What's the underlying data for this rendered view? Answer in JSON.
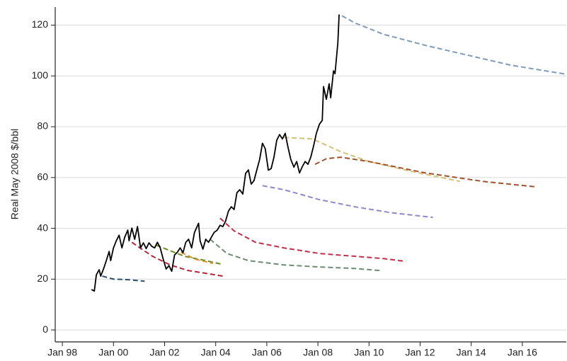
{
  "chart_data": {
    "type": "line",
    "ylabel": "Real May 2008 $/bbl",
    "xlim": [
      1997.72,
      2017.72
    ],
    "xticks": [
      {
        "value": 1998,
        "label": "Jan 98"
      },
      {
        "value": 2000,
        "label": "Jan 00"
      },
      {
        "value": 2002,
        "label": "Jan 02"
      },
      {
        "value": 2004,
        "label": "Jan 04"
      },
      {
        "value": 2006,
        "label": "Jan 06"
      },
      {
        "value": 2008,
        "label": "Jan 08"
      },
      {
        "value": 2010,
        "label": "Jan 10"
      },
      {
        "value": 2012,
        "label": "Jan 12"
      },
      {
        "value": 2014,
        "label": "Jan 14"
      },
      {
        "value": 2016,
        "label": "Jan 16"
      }
    ],
    "ylim": [
      -4.7,
      127.1
    ],
    "yticks": [
      0,
      20,
      40,
      60,
      80,
      100,
      120
    ],
    "grid": true,
    "series": [
      {
        "color": "#000000",
        "dashed": false,
        "x": [
          1999.14,
          1999.25,
          1999.33,
          1999.44,
          1999.5,
          1999.61,
          1999.72,
          1999.83,
          1999.89,
          2000.0,
          2000.11,
          2000.22,
          2000.33,
          2000.44,
          2000.56,
          2000.61,
          2000.72,
          2000.83,
          2000.94,
          2001.06,
          2001.17,
          2001.28,
          2001.39,
          2001.5,
          2001.61,
          2001.72,
          2001.83,
          2001.94,
          2002.06,
          2002.17,
          2002.28,
          2002.39,
          2002.5,
          2002.61,
          2002.72,
          2002.83,
          2002.94,
          2003.06,
          2003.17,
          2003.33,
          2003.39,
          2003.5,
          2003.61,
          2003.72,
          2003.83,
          2003.94,
          2004.06,
          2004.17,
          2004.28,
          2004.39,
          2004.5,
          2004.61,
          2004.72,
          2004.83,
          2004.94,
          2005.06,
          2005.17,
          2005.28,
          2005.39,
          2005.5,
          2005.61,
          2005.72,
          2005.83,
          2005.94,
          2006.06,
          2006.17,
          2006.28,
          2006.39,
          2006.5,
          2006.61,
          2006.72,
          2006.83,
          2006.94,
          2007.06,
          2007.17,
          2007.28,
          2007.39,
          2007.5,
          2007.61,
          2007.72,
          2007.83,
          2007.94,
          2008.06,
          2008.17,
          2008.22,
          2008.33,
          2008.44,
          2008.5,
          2008.61,
          2008.67,
          2008.78,
          2008.83
        ],
        "values": [
          15.9,
          15.3,
          21.7,
          23.7,
          21.2,
          24.0,
          27.3,
          30.9,
          27.3,
          32.3,
          35.1,
          37.3,
          32.3,
          36.5,
          39.3,
          35.1,
          40.1,
          35.7,
          40.7,
          32.3,
          34.3,
          32.0,
          34.3,
          32.9,
          32.3,
          34.5,
          32.3,
          28.1,
          24.0,
          25.3,
          23.1,
          29.5,
          30.6,
          32.3,
          30.4,
          34.5,
          35.7,
          32.3,
          38.4,
          42.0,
          35.1,
          31.8,
          35.7,
          34.5,
          36.5,
          38.4,
          39.3,
          41.2,
          40.7,
          42.9,
          46.8,
          48.5,
          47.4,
          54.0,
          55.2,
          53.5,
          61.6,
          63.0,
          57.4,
          58.8,
          63.0,
          67.1,
          73.5,
          71.3,
          62.9,
          63.5,
          68.0,
          74.7,
          76.9,
          75.2,
          77.4,
          71.9,
          67.1,
          64.1,
          66.3,
          61.8,
          64.3,
          66.3,
          65.2,
          68.0,
          72.4,
          77.4,
          81.0,
          82.5,
          95.8,
          90.8,
          96.9,
          91.4,
          102.0,
          100.9,
          113.0,
          124.2
        ]
      },
      {
        "color": "#2b4f6e",
        "dashed": true,
        "x": [
          1999.56,
          2000.0,
          2000.56,
          2001.22
        ],
        "values": [
          21.2,
          20.0,
          19.8,
          19.2
        ]
      },
      {
        "color": "#b5283a",
        "dashed": true,
        "x": [
          2000.72,
          2001.11,
          2001.53,
          2002.22,
          2002.92,
          2003.61,
          2004.28
        ],
        "values": [
          34.5,
          31.8,
          29.0,
          25.6,
          23.4,
          22.3,
          21.2
        ]
      },
      {
        "color": "#6b8e23",
        "dashed": true,
        "x": [
          2001.67,
          2002.22,
          2002.78,
          2003.61,
          2004.22
        ],
        "values": [
          33.4,
          31.2,
          29.0,
          27.3,
          25.9
        ]
      },
      {
        "color": "#e0902a",
        "dashed": true,
        "x": [
          2002.64,
          2003.19,
          2003.89
        ],
        "values": [
          30.6,
          27.9,
          26.2
        ]
      },
      {
        "color": "#c0304a",
        "dashed": true,
        "x": [
          2004.17,
          2004.72,
          2005.56,
          2006.67,
          2008.06,
          2009.44,
          2010.56,
          2011.44
        ],
        "values": [
          44.0,
          39.0,
          34.5,
          32.3,
          30.1,
          29.0,
          28.1,
          27.0
        ]
      },
      {
        "color": "#6e8b74",
        "dashed": true,
        "x": [
          2003.78,
          2004.44,
          2005.28,
          2006.67,
          2008.06,
          2009.44,
          2010.42
        ],
        "values": [
          35.7,
          30.1,
          27.3,
          25.6,
          24.8,
          24.2,
          23.4
        ]
      },
      {
        "color": "#9088c8",
        "dashed": true,
        "x": [
          2005.83,
          2006.67,
          2008.06,
          2009.44,
          2010.83,
          2012.5
        ],
        "values": [
          56.8,
          55.2,
          51.3,
          48.5,
          46.2,
          44.3
        ]
      },
      {
        "color": "#d4c27a",
        "dashed": true,
        "x": [
          2006.67,
          2007.78,
          2008.89,
          2010.0,
          2011.67,
          2013.56
        ],
        "values": [
          75.8,
          75.2,
          70.2,
          66.3,
          62.4,
          58.5
        ]
      },
      {
        "color": "#a0522d",
        "dashed": true,
        "x": [
          2007.89,
          2008.33,
          2008.89,
          2010.0,
          2012.22,
          2014.44,
          2016.56
        ],
        "values": [
          65.2,
          67.4,
          68.0,
          66.3,
          61.8,
          58.5,
          56.3
        ]
      },
      {
        "color": "#7f9bb8",
        "dashed": true,
        "x": [
          2008.94,
          2009.44,
          2010.56,
          2012.22,
          2013.89,
          2015.56,
          2017.64
        ],
        "values": [
          123.7,
          120.9,
          116.4,
          112.0,
          108.1,
          104.2,
          100.8
        ]
      }
    ]
  }
}
